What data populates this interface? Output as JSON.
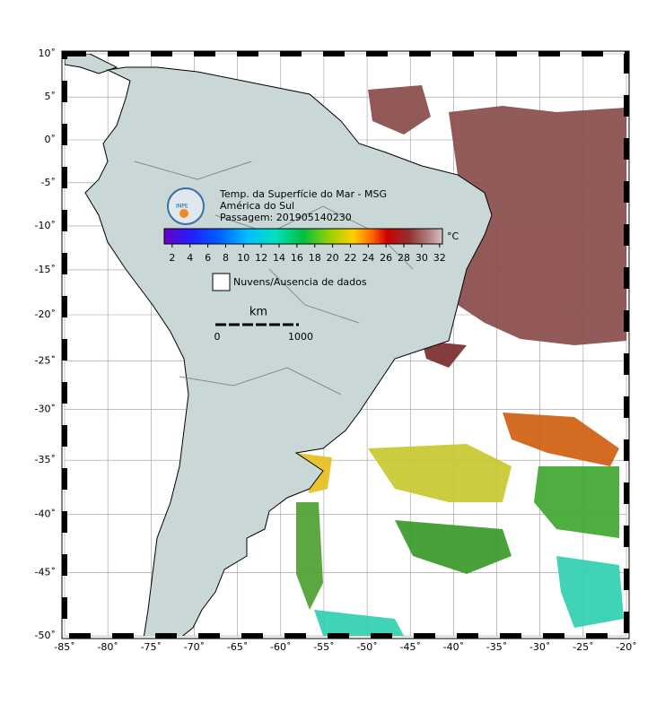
{
  "map": {
    "lat_ticks": [
      {
        "value": 10,
        "label": "10˚"
      },
      {
        "value": 5,
        "label": "5˚"
      },
      {
        "value": 0,
        "label": "0˚"
      },
      {
        "value": -5,
        "label": "-5˚"
      },
      {
        "value": -10,
        "label": "-10˚"
      },
      {
        "value": -15,
        "label": "-15˚"
      },
      {
        "value": -20,
        "label": "-20˚"
      },
      {
        "value": -25,
        "label": "-25˚"
      },
      {
        "value": -30,
        "label": "-30˚"
      },
      {
        "value": -35,
        "label": "-35˚"
      },
      {
        "value": -40,
        "label": "-40˚"
      },
      {
        "value": -45,
        "label": "-45˚"
      },
      {
        "value": -50,
        "label": "-50˚"
      }
    ],
    "lon_ticks": [
      {
        "value": -85,
        "label": "-85˚"
      },
      {
        "value": -80,
        "label": "-80˚"
      },
      {
        "value": -75,
        "label": "-75˚"
      },
      {
        "value": -70,
        "label": "-70˚"
      },
      {
        "value": -65,
        "label": "-65˚"
      },
      {
        "value": -60,
        "label": "-60˚"
      },
      {
        "value": -55,
        "label": "-55˚"
      },
      {
        "value": -50,
        "label": "-50˚"
      },
      {
        "value": -45,
        "label": "-45˚"
      },
      {
        "value": -40,
        "label": "-40˚"
      },
      {
        "value": -35,
        "label": "-35˚"
      },
      {
        "value": -30,
        "label": "-30˚"
      },
      {
        "value": -25,
        "label": "-25˚"
      },
      {
        "value": -20,
        "label": "-20˚"
      }
    ]
  },
  "legend": {
    "title_lines": [
      "Temp. da Superfície do Mar - MSG",
      "América do Sul",
      "Passagem: 201905140230"
    ],
    "logo_text": "INPE",
    "unit": "°C",
    "colorbar_ticks": [
      2,
      4,
      6,
      8,
      10,
      12,
      14,
      16,
      18,
      20,
      22,
      24,
      26,
      28,
      30,
      32
    ],
    "no_data_label": "Nuvens/Ausencia de dados",
    "scale_unit": "km",
    "scale_ticks": [
      0,
      1000
    ]
  }
}
